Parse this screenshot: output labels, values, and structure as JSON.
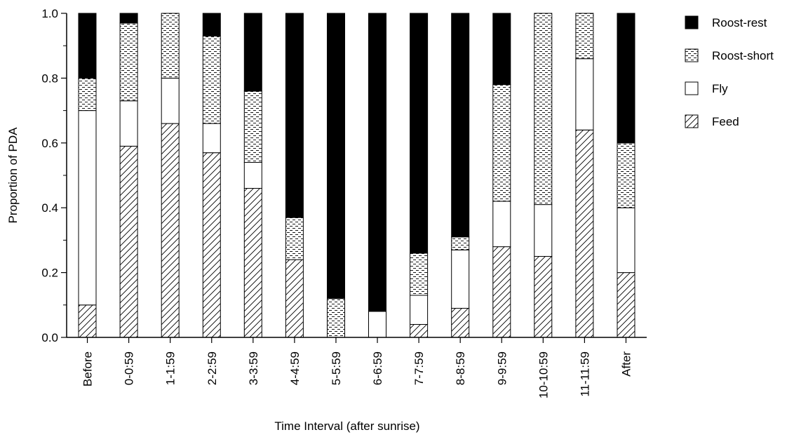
{
  "chart_data": {
    "type": "bar",
    "stacked": true,
    "title": "",
    "xlabel": "Time Interval (after sunrise)",
    "ylabel": "Proportion of PDA",
    "ylim": [
      0,
      1
    ],
    "yticks": [
      "0.0",
      "0.2",
      "0.4",
      "0.6",
      "0.8",
      "1.0"
    ],
    "grid": false,
    "legend_position": "top-right",
    "categories": [
      "Before",
      "0-0:59",
      "1-1:59",
      "2-2:59",
      "3-3:59",
      "4-4:59",
      "5-5:59",
      "6-6:59",
      "7-7:59",
      "8-8:59",
      "9-9:59",
      "10-10:59",
      "11-11:59",
      "After"
    ],
    "series": [
      {
        "name": "Feed",
        "pattern": "hatch",
        "values": [
          0.1,
          0.59,
          0.66,
          0.57,
          0.46,
          0.24,
          0.0,
          0.0,
          0.04,
          0.09,
          0.28,
          0.25,
          0.64,
          0.2
        ]
      },
      {
        "name": "Fly",
        "pattern": "white",
        "values": [
          0.6,
          0.14,
          0.14,
          0.09,
          0.08,
          0.0,
          0.0,
          0.08,
          0.09,
          0.18,
          0.14,
          0.16,
          0.22,
          0.2
        ]
      },
      {
        "name": "Roost-short",
        "pattern": "dashes",
        "values": [
          0.1,
          0.24,
          0.2,
          0.27,
          0.22,
          0.13,
          0.12,
          0.0,
          0.13,
          0.04,
          0.36,
          0.59,
          0.14,
          0.2
        ]
      },
      {
        "name": "Roost-rest",
        "pattern": "black",
        "values": [
          0.2,
          0.03,
          0.0,
          0.07,
          0.24,
          0.63,
          0.88,
          0.92,
          0.74,
          0.69,
          0.22,
          0.0,
          0.0,
          0.4
        ]
      }
    ],
    "legend_order": [
      "Roost-rest",
      "Roost-short",
      "Fly",
      "Feed"
    ]
  }
}
